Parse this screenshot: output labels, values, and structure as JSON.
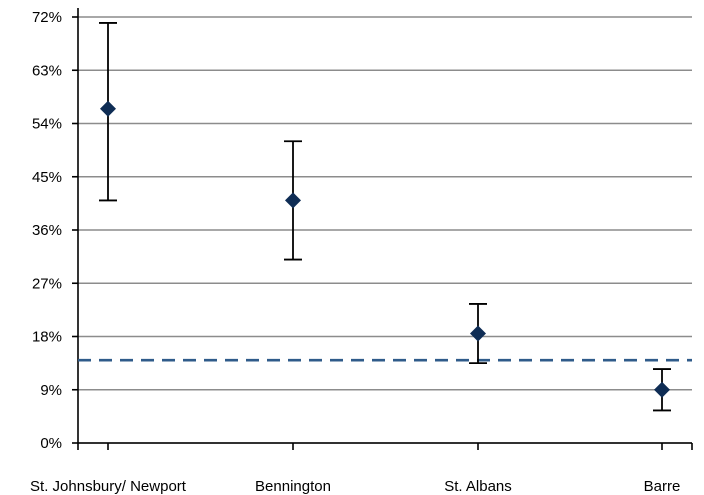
{
  "chart_data": {
    "type": "scatter",
    "title": "",
    "xlabel": "",
    "ylabel": "",
    "categories": [
      "St. Johnsbury/ Newport",
      "Bennington",
      "St. Albans",
      "Barre"
    ],
    "values": [
      56.5,
      41,
      18.5,
      9
    ],
    "error_low": [
      41,
      31,
      13.5,
      5.5
    ],
    "error_high": [
      71,
      51,
      23.5,
      12.5
    ],
    "reference_line": 14,
    "ylim": [
      0,
      72
    ],
    "yticks": [
      0,
      9,
      18,
      27,
      36,
      45,
      54,
      63,
      72
    ],
    "ytick_labels": [
      "0%",
      "9%",
      "18%",
      "27%",
      "36%",
      "45%",
      "54%",
      "63%",
      "72%"
    ],
    "grid": true,
    "legend": "none",
    "colors": {
      "marker": "#0f2d55",
      "reference_line": "#2f5b8a",
      "grid": "#8c8c8c",
      "error_bar": "#000000"
    }
  }
}
